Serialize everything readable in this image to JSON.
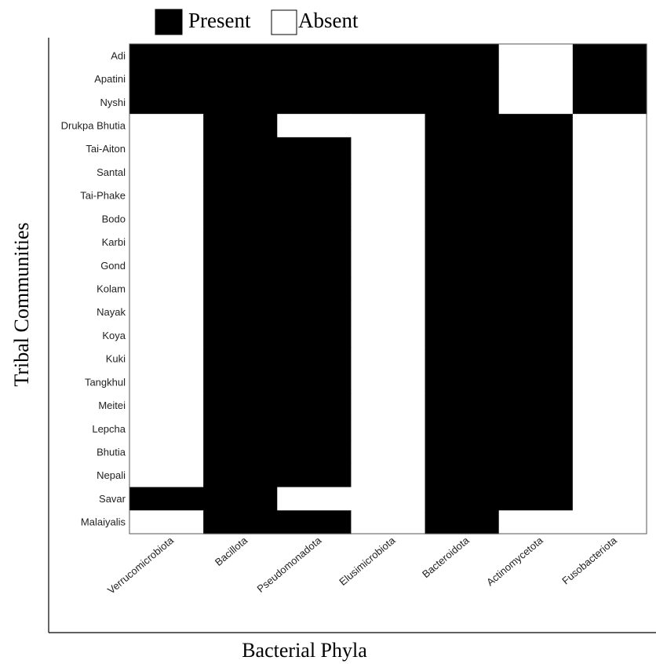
{
  "chart_data": {
    "type": "heatmap",
    "title": "",
    "xlabel": "Bacterial Phyla",
    "ylabel": "Tribal Communities",
    "legend": {
      "placement": "top",
      "entries": [
        {
          "label": "Present",
          "color": "#000000"
        },
        {
          "label": "Absent",
          "color": "#ffffff"
        }
      ]
    },
    "x_categories": [
      "Verrucomicrobiota",
      "Bacillota",
      "Pseudomonadota",
      "Elusimicrobiota",
      "Bacteroidota",
      "Actinomycetota",
      "Fusobacteriota"
    ],
    "y_categories": [
      "Adi",
      "Apatini",
      "Nyshi",
      "Drukpa Bhutia",
      "Tai-Aiton",
      "Santal",
      "Tai-Phake",
      "Bodo",
      "Karbi",
      "Gond",
      "Kolam",
      "Nayak",
      "Koya",
      "Kuki",
      "Tangkhul",
      "Meitei",
      "Lepcha",
      "Bhutia",
      "Nepali",
      "Savar",
      "Malaiyalis"
    ],
    "values": [
      [
        1,
        1,
        1,
        1,
        1,
        0,
        1
      ],
      [
        1,
        1,
        1,
        1,
        1,
        0,
        1
      ],
      [
        1,
        1,
        1,
        1,
        1,
        0,
        1
      ],
      [
        0,
        1,
        0,
        0,
        1,
        1,
        0
      ],
      [
        0,
        1,
        1,
        0,
        1,
        1,
        0
      ],
      [
        0,
        1,
        1,
        0,
        1,
        1,
        0
      ],
      [
        0,
        1,
        1,
        0,
        1,
        1,
        0
      ],
      [
        0,
        1,
        1,
        0,
        1,
        1,
        0
      ],
      [
        0,
        1,
        1,
        0,
        1,
        1,
        0
      ],
      [
        0,
        1,
        1,
        0,
        1,
        1,
        0
      ],
      [
        0,
        1,
        1,
        0,
        1,
        1,
        0
      ],
      [
        0,
        1,
        1,
        0,
        1,
        1,
        0
      ],
      [
        0,
        1,
        1,
        0,
        1,
        1,
        0
      ],
      [
        0,
        1,
        1,
        0,
        1,
        1,
        0
      ],
      [
        0,
        1,
        1,
        0,
        1,
        1,
        0
      ],
      [
        0,
        1,
        1,
        0,
        1,
        1,
        0
      ],
      [
        0,
        1,
        1,
        0,
        1,
        1,
        0
      ],
      [
        0,
        1,
        1,
        0,
        1,
        1,
        0
      ],
      [
        0,
        1,
        1,
        0,
        1,
        1,
        0
      ],
      [
        1,
        1,
        0,
        0,
        1,
        1,
        0
      ],
      [
        0,
        1,
        1,
        0,
        1,
        0,
        0
      ]
    ],
    "colors": {
      "present": "#000000",
      "absent": "#ffffff"
    }
  }
}
